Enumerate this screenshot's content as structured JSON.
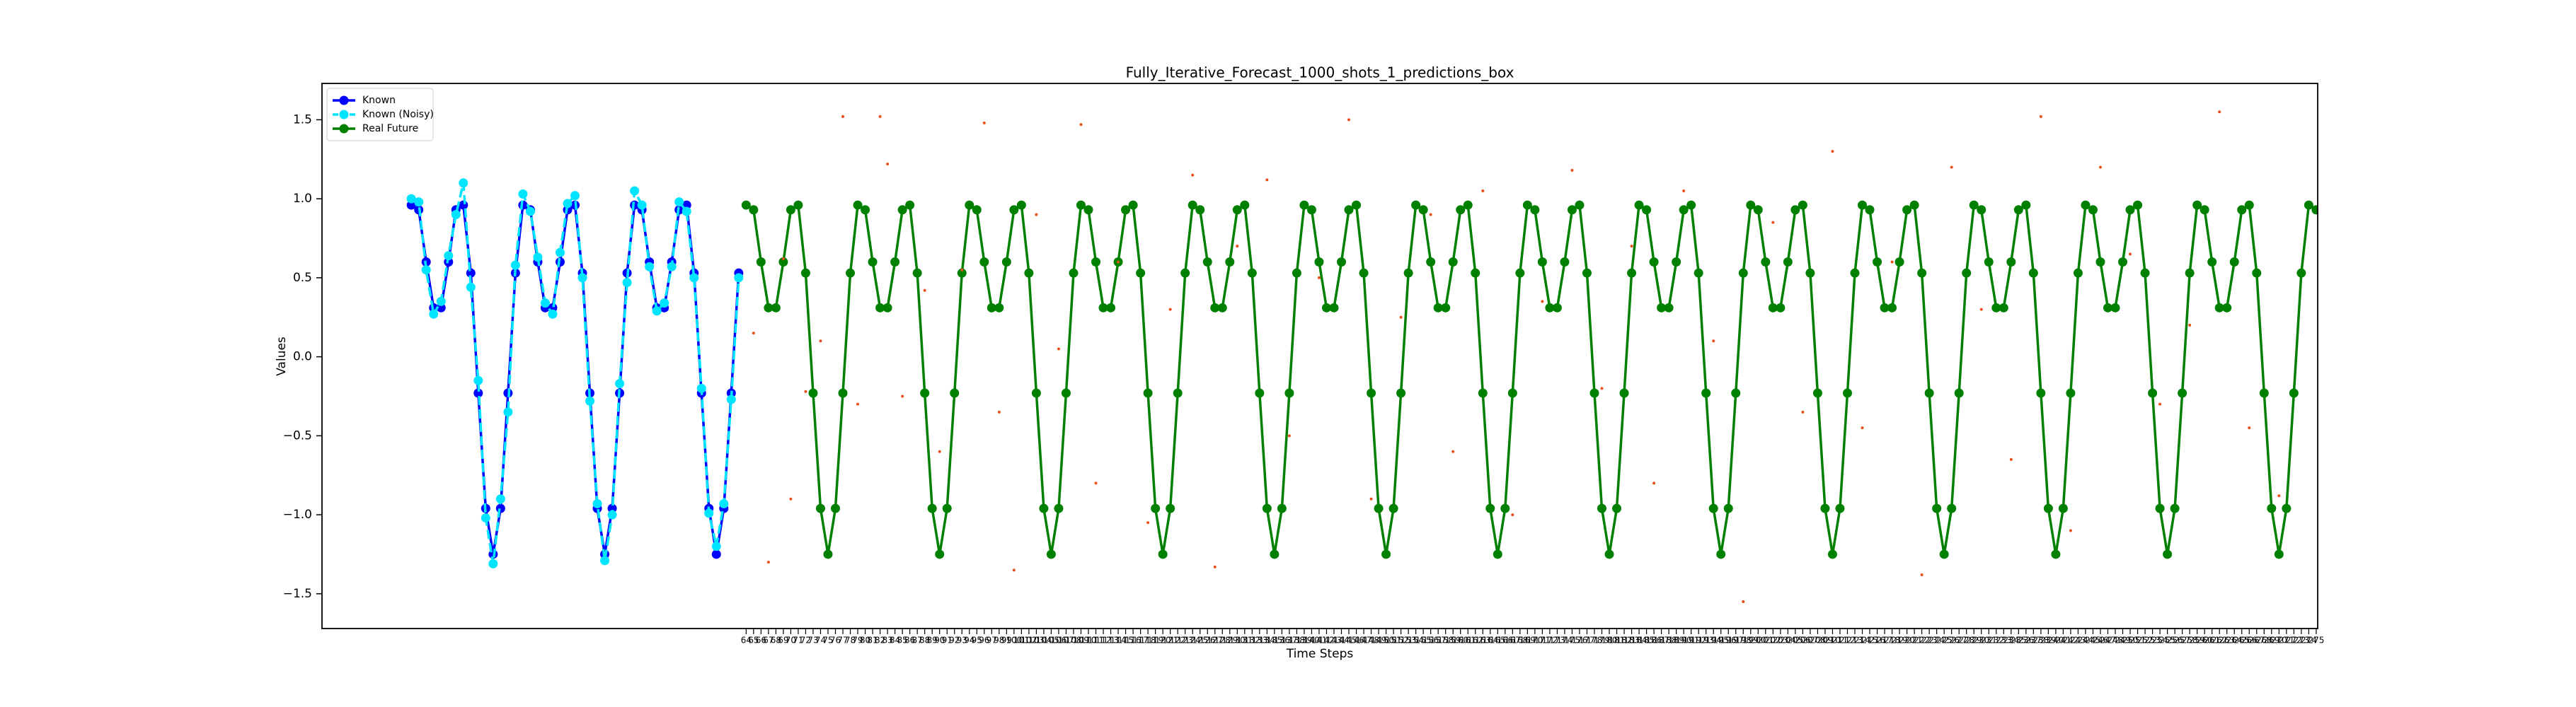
{
  "chart_data": {
    "type": "line",
    "title": "Fully_Iterative_Forecast_1000_shots_1_predictions_box",
    "xlabel": "Time Steps",
    "ylabel": "Values",
    "xlim": [
      7,
      275.2
    ],
    "ylim": [
      -1.72,
      1.73
    ],
    "yticks": [
      {
        "value": -1.5,
        "label": "−1.5"
      },
      {
        "value": -1.0,
        "label": "−1.0"
      },
      {
        "value": -0.5,
        "label": "−0.5"
      },
      {
        "value": 0.0,
        "label": "0.0"
      },
      0.5,
      {
        "value": 1.0,
        "label": "1.0"
      },
      1.5
    ],
    "xticks": [
      64,
      65,
      66,
      67,
      68,
      69,
      70,
      71,
      72,
      73,
      74,
      75,
      76,
      77,
      78,
      79,
      80,
      81,
      82,
      83,
      84,
      85,
      86,
      87,
      88,
      89,
      90,
      91,
      92,
      93,
      94,
      95,
      96,
      97,
      98,
      99,
      100,
      101,
      102,
      103,
      104,
      105,
      106,
      107,
      108,
      109,
      110,
      111,
      112,
      113,
      114,
      115,
      116,
      117,
      118,
      119,
      120,
      121,
      122,
      123,
      124,
      125,
      126,
      127,
      128,
      129,
      130,
      131,
      132,
      133,
      134,
      135,
      136,
      137,
      138,
      139,
      140,
      141,
      142,
      143,
      144,
      145,
      146,
      147,
      148,
      149,
      150,
      151,
      152,
      153,
      154,
      155,
      156,
      157,
      158,
      159,
      160,
      161,
      162,
      163,
      164,
      165,
      166,
      167,
      168,
      169,
      170,
      171,
      172,
      173,
      174,
      175,
      176,
      177,
      178,
      179,
      180,
      181,
      182,
      183,
      184,
      185,
      186,
      187,
      188,
      189,
      190,
      191,
      192,
      193,
      194,
      195,
      196,
      197,
      198,
      199,
      200,
      201,
      202,
      203,
      204,
      205,
      206,
      207,
      208,
      209,
      210,
      211,
      212,
      213,
      214,
      215,
      216,
      217,
      218,
      219,
      220,
      221,
      222,
      223,
      224,
      225,
      226,
      227,
      228,
      229,
      230,
      231,
      232,
      233,
      234,
      235,
      236,
      237,
      238,
      239,
      240,
      241,
      242,
      243,
      244,
      245,
      246,
      247,
      248,
      249,
      250,
      251,
      252,
      253,
      254,
      255,
      256,
      257,
      258,
      259,
      260,
      261,
      262,
      263,
      264,
      265,
      266,
      267,
      268,
      269,
      270,
      271,
      272,
      273,
      274,
      275
    ],
    "legend": "upper left",
    "series": [
      {
        "name": "Known",
        "color": "#0000ff",
        "linestyle": "solid",
        "marker": "o",
        "x": [
          19,
          20,
          21,
          22,
          23,
          24,
          25,
          26,
          27,
          28,
          29,
          30,
          31,
          32,
          33,
          34,
          35,
          36,
          37,
          38,
          39,
          40,
          41,
          42,
          43,
          44,
          45,
          46,
          47,
          48,
          49,
          50,
          51,
          52,
          53,
          54,
          55,
          56,
          57,
          58,
          59,
          60,
          61,
          62,
          63
        ],
        "values": [
          0.96,
          0.93,
          0.6,
          0.31,
          0.31,
          0.6,
          0.93,
          0.96,
          0.53,
          -0.23,
          -0.96,
          -1.25,
          -0.96,
          -0.23,
          0.53,
          0.96,
          0.93,
          0.6,
          0.31,
          0.31,
          0.6,
          0.93,
          0.96,
          0.53,
          -0.23,
          -0.96,
          -1.25,
          -0.96,
          -0.23,
          0.53,
          0.96,
          0.93,
          0.6,
          0.31,
          0.31,
          0.6,
          0.93,
          0.96,
          0.53,
          -0.23,
          -0.96,
          -1.25,
          -0.96,
          -0.23,
          0.53
        ]
      },
      {
        "name": "Known (Noisy)",
        "color": "#00e5ff",
        "linestyle": "dashed",
        "marker": "o",
        "x": [
          19,
          20,
          21,
          22,
          23,
          24,
          25,
          26,
          27,
          28,
          29,
          30,
          31,
          32,
          33,
          34,
          35,
          36,
          37,
          38,
          39,
          40,
          41,
          42,
          43,
          44,
          45,
          46,
          47,
          48,
          49,
          50,
          51,
          52,
          53,
          54,
          55,
          56,
          57,
          58,
          59,
          60,
          61,
          62,
          63
        ],
        "values": [
          1.0,
          0.98,
          0.55,
          0.27,
          0.35,
          0.64,
          0.9,
          1.1,
          0.44,
          -0.15,
          -1.02,
          -1.31,
          -0.9,
          -0.35,
          0.58,
          1.03,
          0.92,
          0.63,
          0.34,
          0.27,
          0.66,
          0.97,
          1.02,
          0.5,
          -0.28,
          -0.93,
          -1.29,
          -1.0,
          -0.17,
          0.47,
          1.05,
          0.96,
          0.57,
          0.29,
          0.34,
          0.57,
          0.98,
          0.92,
          0.5,
          -0.2,
          -0.99,
          -1.2,
          -0.93,
          -0.27,
          0.5
        ]
      },
      {
        "name": "Real Future",
        "color": "#008000",
        "linestyle": "solid",
        "marker": "o",
        "x": [
          64,
          65,
          66,
          67,
          68,
          69,
          70,
          71,
          72,
          73,
          74,
          75,
          76,
          77,
          78,
          79,
          80,
          81,
          82,
          83,
          84,
          85,
          86,
          87,
          88,
          89,
          90,
          91,
          92,
          93,
          94,
          95,
          96,
          97,
          98,
          99,
          100,
          101,
          102,
          103,
          104,
          105,
          106,
          107,
          108,
          109,
          110,
          111,
          112,
          113,
          114,
          115,
          116,
          117,
          118,
          119,
          120,
          121,
          122,
          123,
          124,
          125,
          126,
          127,
          128,
          129,
          130,
          131,
          132,
          133,
          134,
          135,
          136,
          137,
          138,
          139,
          140,
          141,
          142,
          143,
          144,
          145,
          146,
          147,
          148,
          149,
          150,
          151,
          152,
          153,
          154,
          155,
          156,
          157,
          158,
          159,
          160,
          161,
          162,
          163,
          164,
          165,
          166,
          167,
          168,
          169,
          170,
          171,
          172,
          173,
          174,
          175,
          176,
          177,
          178,
          179,
          180,
          181,
          182,
          183,
          184,
          185,
          186,
          187,
          188,
          189,
          190,
          191,
          192,
          193,
          194,
          195,
          196,
          197,
          198,
          199,
          200,
          201,
          202,
          203,
          204,
          205,
          206,
          207,
          208,
          209,
          210,
          211,
          212,
          213,
          214,
          215,
          216,
          217,
          218,
          219,
          220,
          221,
          222,
          223,
          224,
          225,
          226,
          227,
          228,
          229,
          230,
          231,
          232,
          233,
          234,
          235,
          236,
          237,
          238,
          239,
          240,
          241,
          242,
          243,
          244,
          245,
          246,
          247,
          248,
          249,
          250,
          251,
          252,
          253,
          254,
          255,
          256,
          257,
          258,
          259,
          260,
          261,
          262,
          263,
          264,
          265,
          266,
          267,
          268,
          269,
          270,
          271,
          272,
          273,
          274,
          275
        ],
        "values": [
          0.96,
          0.93,
          0.6,
          0.31,
          0.31,
          0.6,
          0.93,
          0.96,
          0.53,
          -0.23,
          -0.96,
          -1.25,
          -0.96,
          -0.23,
          0.53,
          0.96,
          0.93,
          0.6,
          0.31,
          0.31,
          0.6,
          0.93,
          0.96,
          0.53,
          -0.23,
          -0.96,
          -1.25,
          -0.96,
          -0.23,
          0.53,
          0.96,
          0.93,
          0.6,
          0.31,
          0.31,
          0.6,
          0.93,
          0.96,
          0.53,
          -0.23,
          -0.96,
          -1.25,
          -0.96,
          -0.23,
          0.53,
          0.96,
          0.93,
          0.6,
          0.31,
          0.31,
          0.6,
          0.93,
          0.96,
          0.53,
          -0.23,
          -0.96,
          -1.25,
          -0.96,
          -0.23,
          0.53,
          0.96,
          0.93,
          0.6,
          0.31,
          0.31,
          0.6,
          0.93,
          0.96,
          0.53,
          -0.23,
          -0.96,
          -1.25,
          -0.96,
          -0.23,
          0.53,
          0.96,
          0.93,
          0.6,
          0.31,
          0.31,
          0.6,
          0.93,
          0.96,
          0.53,
          -0.23,
          -0.96,
          -1.25,
          -0.96,
          -0.23,
          0.53,
          0.96,
          0.93,
          0.6,
          0.31,
          0.31,
          0.6,
          0.93,
          0.96,
          0.53,
          -0.23,
          -0.96,
          -1.25,
          -0.96,
          -0.23,
          0.53,
          0.96,
          0.93,
          0.6,
          0.31,
          0.31,
          0.6,
          0.93,
          0.96,
          0.53,
          -0.23,
          -0.96,
          -1.25,
          -0.96,
          -0.23,
          0.53,
          0.96,
          0.93,
          0.6,
          0.31,
          0.31,
          0.6,
          0.93,
          0.96,
          0.53,
          -0.23,
          -0.96,
          -1.25,
          -0.96,
          -0.23,
          0.53,
          0.96,
          0.93,
          0.6,
          0.31,
          0.31,
          0.6,
          0.93,
          0.96,
          0.53,
          -0.23,
          -0.96,
          -1.25,
          -0.96,
          -0.23,
          0.53,
          0.96,
          0.93,
          0.6,
          0.31,
          0.31,
          0.6,
          0.93,
          0.96,
          0.53,
          -0.23,
          -0.96,
          -1.25,
          -0.96,
          -0.23,
          0.53,
          0.96,
          0.93,
          0.6,
          0.31,
          0.31,
          0.6,
          0.93,
          0.96,
          0.53,
          -0.23,
          -0.96,
          -1.25,
          -0.96,
          -0.23,
          0.53,
          0.96,
          0.93,
          0.6,
          0.31,
          0.31,
          0.6,
          0.93,
          0.96,
          0.53,
          -0.23,
          -0.96,
          -1.25,
          -0.96,
          -0.23,
          0.53,
          0.96,
          0.93,
          0.6,
          0.31,
          0.31,
          0.6,
          0.93,
          0.96,
          0.53,
          -0.23,
          -0.96,
          -1.25,
          -0.96,
          -0.23,
          0.53,
          0.96,
          0.93
        ]
      },
      {
        "color": "#e8501a",
        "linestyle": "none",
        "marker": ".",
        "x": [
          65,
          67,
          69,
          70,
          72,
          74,
          77,
          79,
          82,
          83,
          85,
          88,
          90,
          93,
          96,
          98,
          100,
          103,
          106,
          109,
          111,
          114,
          118,
          121,
          124,
          127,
          130,
          134,
          137,
          141,
          145,
          148,
          152,
          156,
          159,
          163,
          167,
          171,
          175,
          179,
          183,
          186,
          190,
          194,
          198,
          202,
          206,
          210,
          214,
          218,
          222,
          226,
          230,
          234,
          238,
          242,
          246,
          250,
          254,
          258,
          262,
          266,
          270
        ],
        "values": [
          0.15,
          -1.3,
          0.62,
          -0.9,
          -0.22,
          0.1,
          1.52,
          -0.3,
          1.52,
          1.22,
          -0.25,
          0.42,
          -0.6,
          0.55,
          1.48,
          -0.35,
          -1.35,
          0.9,
          0.05,
          1.47,
          -0.8,
          0.6,
          -1.05,
          0.3,
          1.15,
          -1.33,
          0.7,
          1.12,
          -0.5,
          0.5,
          1.5,
          -0.9,
          0.25,
          0.9,
          -0.6,
          1.05,
          -1.0,
          0.35,
          1.18,
          -0.2,
          0.7,
          -0.8,
          1.05,
          0.1,
          -1.55,
          0.85,
          -0.35,
          1.3,
          -0.45,
          0.6,
          -1.38,
          1.2,
          0.3,
          -0.65,
          1.52,
          -1.1,
          1.2,
          0.65,
          -0.3,
          0.2,
          1.55,
          -0.45,
          -0.88
        ]
      }
    ]
  }
}
